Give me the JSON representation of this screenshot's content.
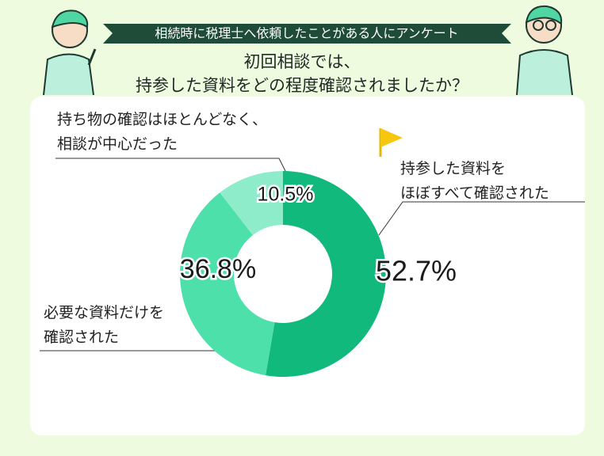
{
  "chart_data": {
    "type": "donut",
    "subtitle": "相続時に税理士へ依頼したことがある人にアンケート",
    "title": [
      "初回相談では、",
      "持参した資料をどの程度確認されましたか？"
    ],
    "categories": [
      "持参した資料を\nほぼすべて確認された",
      "必要な資料だけを\n確認された",
      "持ち物の確認はほとんどなく、\n相談が中心だった"
    ],
    "values": [
      52.7,
      36.8,
      10.5
    ],
    "value_labels": [
      "52.7%",
      "36.8%",
      "10.5%"
    ],
    "colors": [
      "#12b97c",
      "#4ee0aa",
      "#8eeccb"
    ]
  }
}
